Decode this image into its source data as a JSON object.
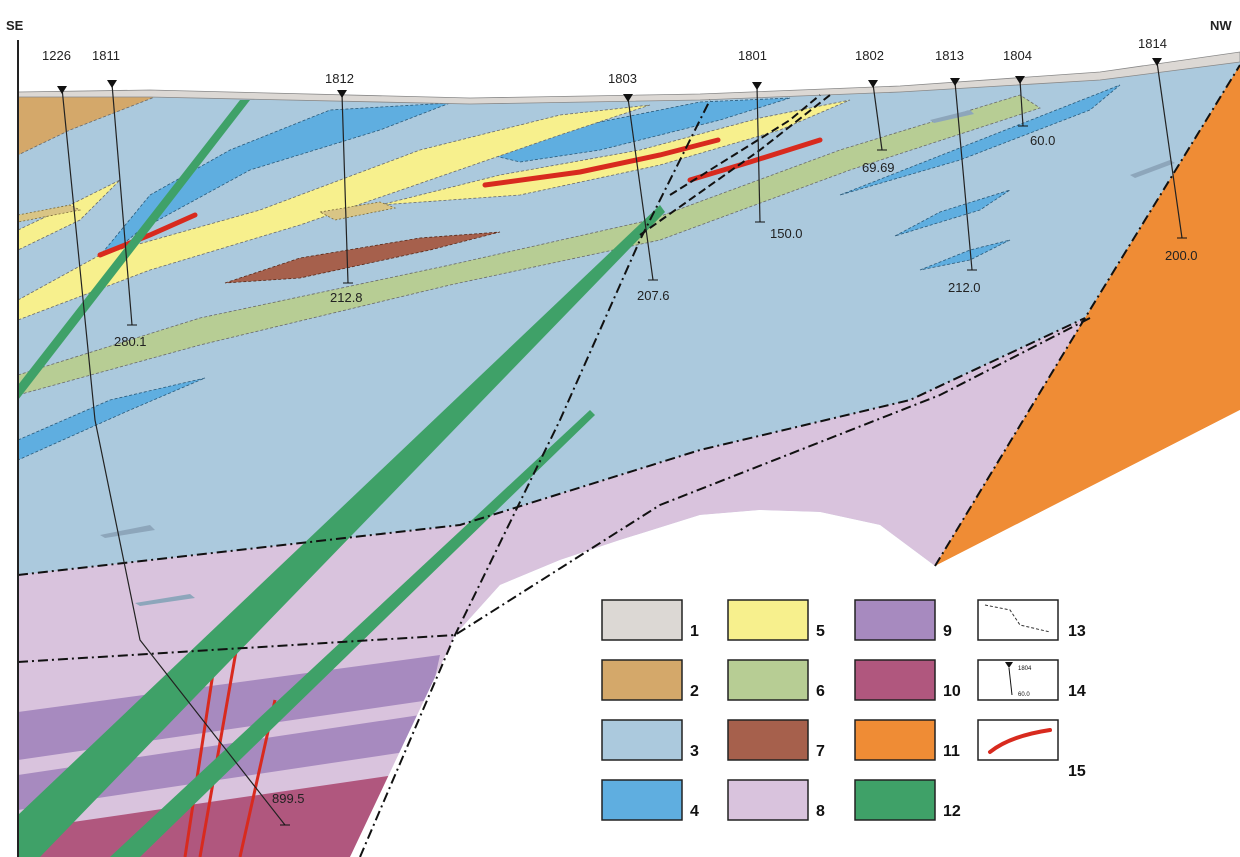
{
  "orientation": {
    "left": "SE",
    "right": "NW"
  },
  "boreholes": [
    {
      "id": "1226",
      "depth": "899.5"
    },
    {
      "id": "1811",
      "depth": "280.1"
    },
    {
      "id": "1812",
      "depth": "212.8"
    },
    {
      "id": "1803",
      "depth": "207.6"
    },
    {
      "id": "1801",
      "depth": "150.0"
    },
    {
      "id": "1802",
      "depth": "69.69"
    },
    {
      "id": "1813",
      "depth": "212.0"
    },
    {
      "id": "1804",
      "depth": "60.0"
    },
    {
      "id": "1814",
      "depth": "200.0"
    }
  ],
  "legend": [
    {
      "num": "1",
      "color": "#dcd8d4"
    },
    {
      "num": "2",
      "color": "#d4a86a"
    },
    {
      "num": "3",
      "color": "#abc9dd"
    },
    {
      "num": "4",
      "color": "#5faee0"
    },
    {
      "num": "5",
      "color": "#f7f08d"
    },
    {
      "num": "6",
      "color": "#b7cd94"
    },
    {
      "num": "7",
      "color": "#a6604c"
    },
    {
      "num": "8",
      "color": "#d9c3dd"
    },
    {
      "num": "9",
      "color": "#a78abf"
    },
    {
      "num": "10",
      "color": "#b0577e"
    },
    {
      "num": "11",
      "color": "#ef8c35"
    },
    {
      "num": "12",
      "color": "#3fa168"
    },
    {
      "num": "13",
      "color": "#333333"
    },
    {
      "num": "14",
      "color": "#111111"
    },
    {
      "num": "15",
      "color": "#d82a1e"
    }
  ],
  "legend_sample": {
    "id": "1804",
    "depth": "60.0"
  }
}
